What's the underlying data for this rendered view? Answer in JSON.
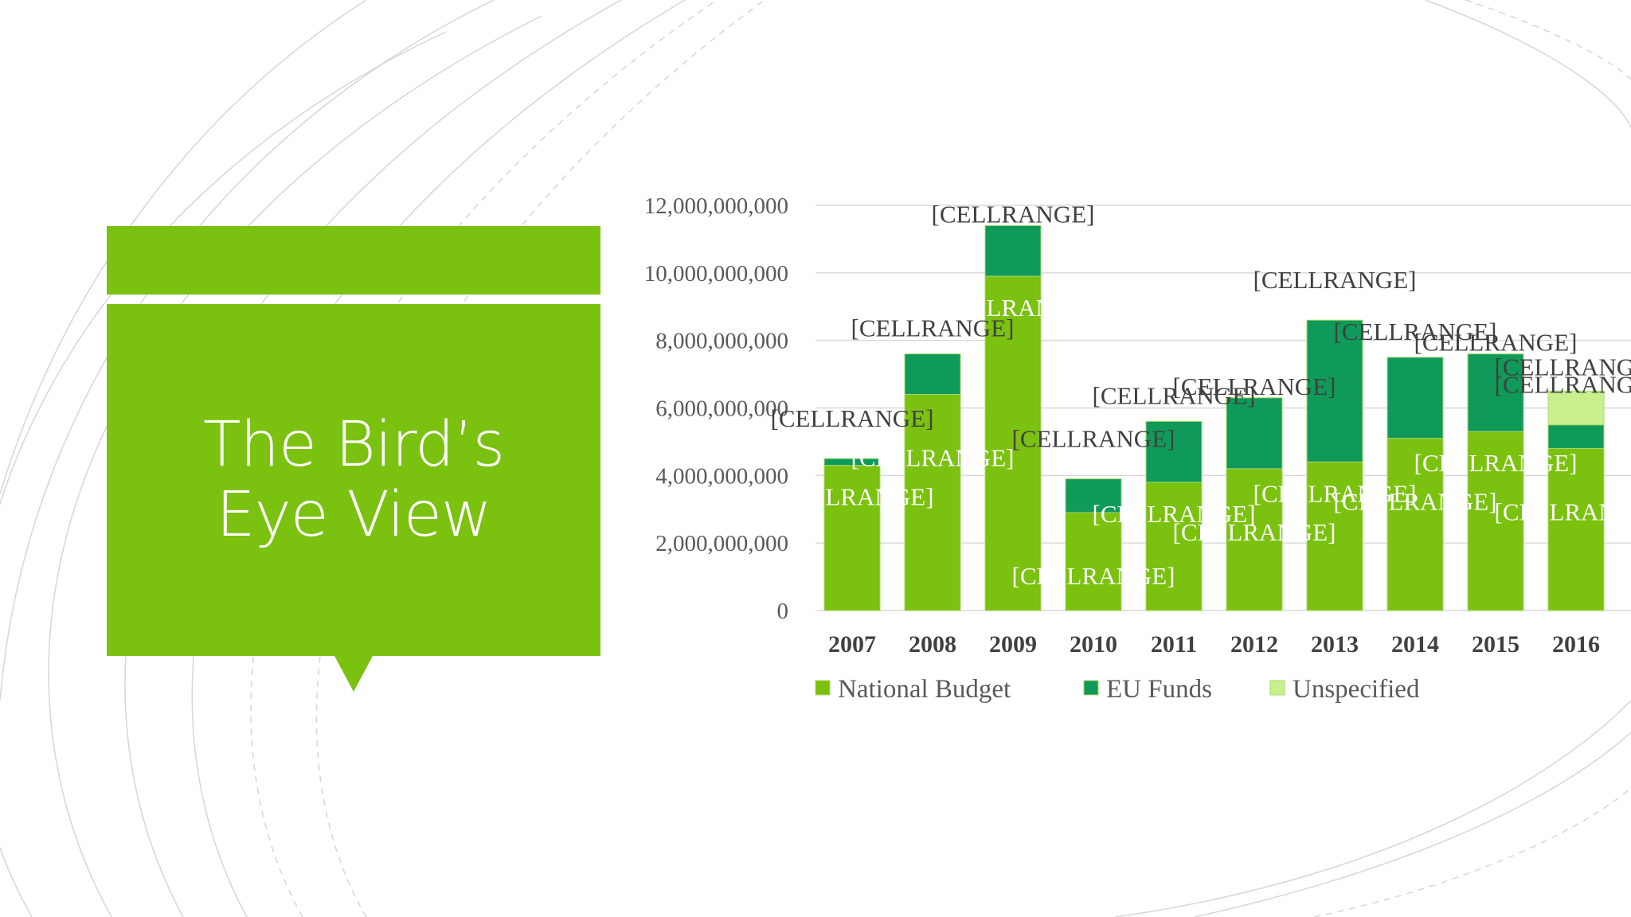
{
  "slide": {
    "title": "The Bird’s Eye View"
  },
  "colors": {
    "accent": "#7bc10f",
    "national_budget": "#7bc10f",
    "eu_funds": "#0f9a5a",
    "unspecified": "#c9f08f",
    "gridline": "#d9d9d9"
  },
  "chart_data": {
    "type": "bar",
    "stacked": true,
    "title": "",
    "xlabel": "",
    "ylabel": "",
    "categories": [
      "2007",
      "2008",
      "2009",
      "2010",
      "2011",
      "2012",
      "2013",
      "2014",
      "2015",
      "2016"
    ],
    "series": [
      {
        "name": "National Budget",
        "color": "#7bc10f",
        "values": [
          4300000000,
          6400000000,
          9900000000,
          2900000000,
          3800000000,
          4200000000,
          4400000000,
          5100000000,
          5300000000,
          4800000000
        ]
      },
      {
        "name": "EU Funds",
        "color": "#0f9a5a",
        "values": [
          200000000,
          1200000000,
          1500000000,
          1000000000,
          1800000000,
          2100000000,
          4200000000,
          2400000000,
          2300000000,
          700000000
        ]
      },
      {
        "name": "Unspecified",
        "color": "#c9f08f",
        "values": [
          0,
          0,
          0,
          0,
          0,
          0,
          0,
          0,
          0,
          1000000000
        ]
      }
    ],
    "ylim": [
      0,
      12000000000
    ],
    "yticks": [
      0,
      2000000000,
      4000000000,
      6000000000,
      8000000000,
      10000000000,
      12000000000
    ],
    "ytick_labels": [
      "0",
      "2,000,000,000",
      "4,000,000,000",
      "6,000,000,000",
      "8,000,000,000",
      "10,000,000,000",
      "12,000,000,000"
    ],
    "grid": true,
    "legend_position": "bottom",
    "data_label_text": "[CELLRANGE]"
  }
}
